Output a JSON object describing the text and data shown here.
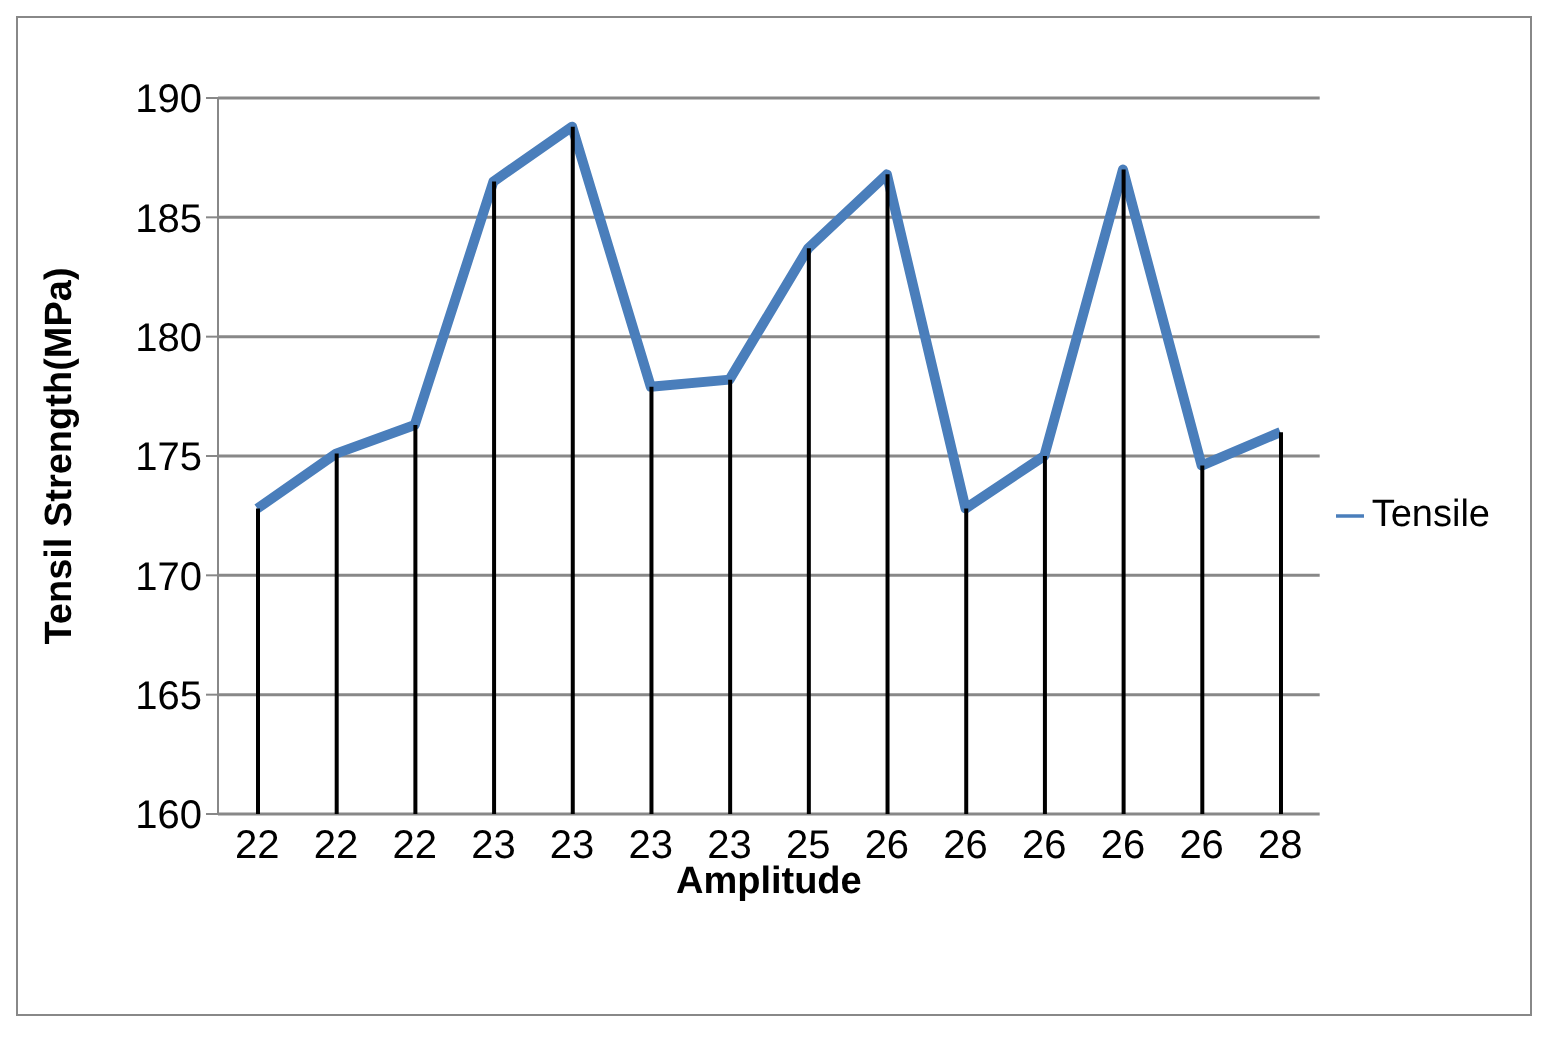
{
  "chart_data": {
    "type": "line",
    "xlabel": "Amplitude",
    "ylabel": "Tensil Strength(MPa)",
    "categories": [
      "22",
      "22",
      "22",
      "23",
      "23",
      "23",
      "23",
      "25",
      "26",
      "26",
      "26",
      "26",
      "26",
      "28"
    ],
    "series": [
      {
        "name": "Tensile",
        "color": "#4a7ebb",
        "values": [
          172.8,
          175.1,
          176.3,
          186.5,
          188.8,
          177.9,
          178.2,
          183.7,
          186.8,
          172.8,
          175.0,
          187.0,
          174.6,
          176.0
        ]
      },
      {
        "type": "bar",
        "color": "#000000",
        "values": [
          172.8,
          175.1,
          176.3,
          186.5,
          188.8,
          177.9,
          178.2,
          183.7,
          186.8,
          172.8,
          175.0,
          187.0,
          174.6,
          176.0
        ]
      }
    ],
    "ylim": [
      160,
      190
    ],
    "yticks": [
      160,
      165,
      170,
      175,
      180,
      185,
      190
    ],
    "grid": "y",
    "legend": "right"
  }
}
